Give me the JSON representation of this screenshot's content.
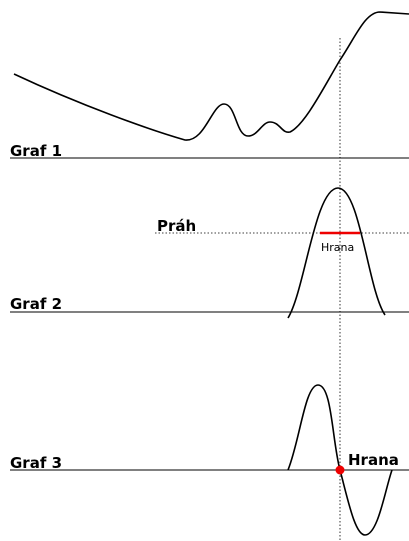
{
  "graphs": [
    {
      "label": "Graf 1"
    },
    {
      "label": "Graf 2",
      "threshold_label": "Práh",
      "edge_label": "Hrana"
    },
    {
      "label": "Graf 3",
      "edge_label": "Hrana"
    }
  ]
}
